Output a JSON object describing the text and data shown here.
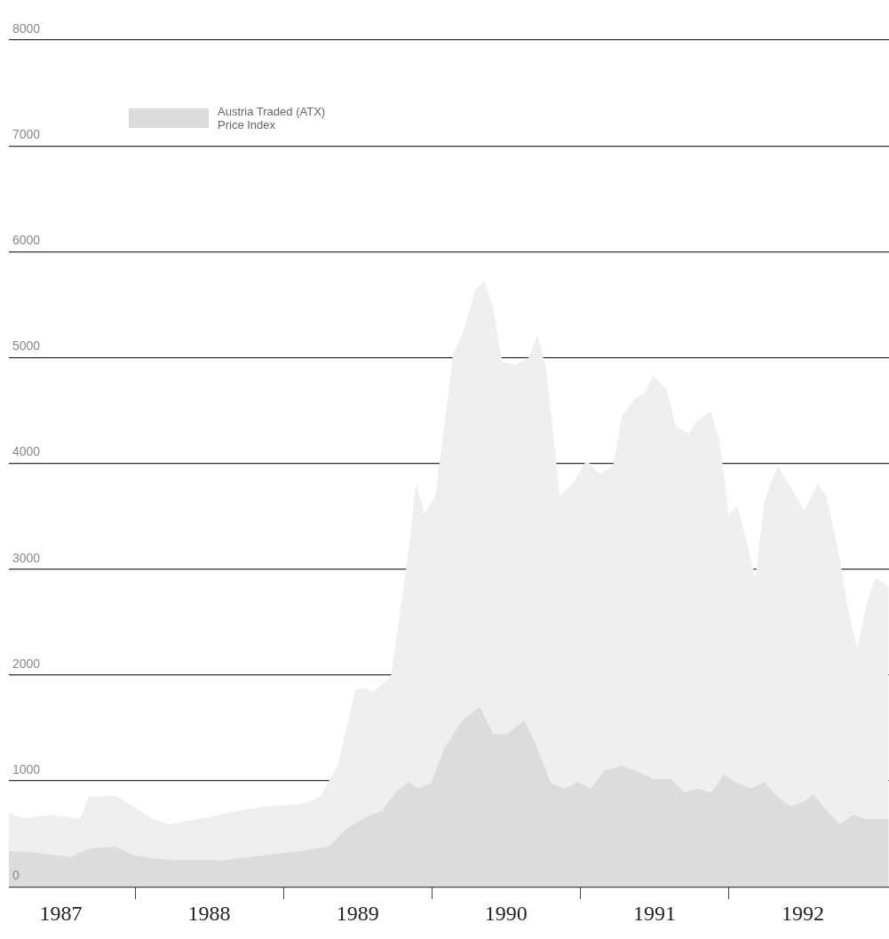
{
  "chart_data": {
    "type": "area",
    "legend": "top left",
    "grid": "y",
    "ylim": [
      0,
      8000
    ],
    "yticks": [
      0,
      1000,
      2000,
      3000,
      4000,
      5000,
      6000,
      7000,
      8000
    ],
    "xlim": [
      1987.15,
      1993.08
    ],
    "xticks": [
      {
        "value": 1987.5,
        "label": "1987"
      },
      {
        "value": 1988,
        "label": null
      },
      {
        "value": 1988.5,
        "label": "1988"
      },
      {
        "value": 1989,
        "label": null
      },
      {
        "value": 1989.5,
        "label": "1989"
      },
      {
        "value": 1990,
        "label": null
      },
      {
        "value": 1990.5,
        "label": "1990"
      },
      {
        "value": 1991,
        "label": null
      },
      {
        "value": 1991.5,
        "label": "1991"
      },
      {
        "value": 1992,
        "label": null
      },
      {
        "value": 1992.5,
        "label": "1992"
      }
    ],
    "series": [
      {
        "color": "#efefef",
        "x": [
          1987.15,
          1987.24,
          1987.449,
          1987.629,
          1987.689,
          1987.868,
          1987.988,
          1988.108,
          1988.228,
          1988.467,
          1988.707,
          1988.886,
          1989.126,
          1989.246,
          1989.365,
          1989.485,
          1989.545,
          1989.605,
          1989.725,
          1989.844,
          1989.892,
          1989.952,
          1990.024,
          1990.084,
          1990.144,
          1990.204,
          1990.293,
          1990.353,
          1990.413,
          1990.473,
          1990.563,
          1990.653,
          1990.713,
          1990.772,
          1990.862,
          1990.952,
          1991.042,
          1991.132,
          1991.222,
          1991.281,
          1991.371,
          1991.431,
          1991.491,
          1991.581,
          1991.641,
          1991.731,
          1991.79,
          1991.88,
          1991.94,
          1992.0,
          1992.06,
          1992.12,
          1992.18,
          1992.24,
          1992.329,
          1992.419,
          1992.509,
          1992.599,
          1992.659,
          1992.749,
          1992.808,
          1992.868,
          1992.928,
          1992.988,
          1993.078
        ],
        "values": [
          700,
          650,
          680,
          640,
          850,
          860,
          760,
          650,
          590,
          650,
          720,
          760,
          780,
          850,
          1140,
          1860,
          1880,
          1840,
          1990,
          3180,
          3810,
          3520,
          3690,
          4360,
          5040,
          5210,
          5640,
          5720,
          5470,
          4960,
          4930,
          5000,
          5210,
          4870,
          3690,
          3810,
          4030,
          3900,
          3980,
          4450,
          4620,
          4660,
          4830,
          4700,
          4360,
          4280,
          4410,
          4490,
          4200,
          3520,
          3600,
          3260,
          2920,
          3640,
          3980,
          3770,
          3560,
          3810,
          3690,
          3090,
          2590,
          2250,
          2670,
          2920,
          2840
        ]
      },
      {
        "name": "Austria Traded (ATX) Price Index",
        "color": "#dcdcdc",
        "x": [
          1987.15,
          1987.329,
          1987.569,
          1987.689,
          1987.868,
          1987.988,
          1988.108,
          1988.287,
          1988.587,
          1988.886,
          1989.126,
          1989.305,
          1989.425,
          1989.545,
          1989.665,
          1989.754,
          1989.844,
          1989.904,
          1989.994,
          1990.084,
          1990.204,
          1990.323,
          1990.413,
          1990.503,
          1990.623,
          1990.683,
          1990.802,
          1990.892,
          1990.982,
          1991.072,
          1991.162,
          1991.281,
          1991.371,
          1991.491,
          1991.611,
          1991.701,
          1991.79,
          1991.88,
          1991.97,
          1992.06,
          1992.15,
          1992.24,
          1992.329,
          1992.419,
          1992.509,
          1992.569,
          1992.659,
          1992.749,
          1992.838,
          1992.928,
          1993.078
        ],
        "values": [
          340,
          320,
          280,
          360,
          380,
          300,
          270,
          250,
          250,
          300,
          340,
          380,
          550,
          650,
          720,
          890,
          990,
          930,
          980,
          1310,
          1570,
          1700,
          1440,
          1440,
          1570,
          1400,
          980,
          930,
          990,
          930,
          1100,
          1140,
          1100,
          1020,
          1020,
          890,
          930,
          890,
          1060,
          980,
          930,
          990,
          850,
          760,
          810,
          870,
          720,
          590,
          680,
          640,
          640
        ]
      }
    ]
  }
}
